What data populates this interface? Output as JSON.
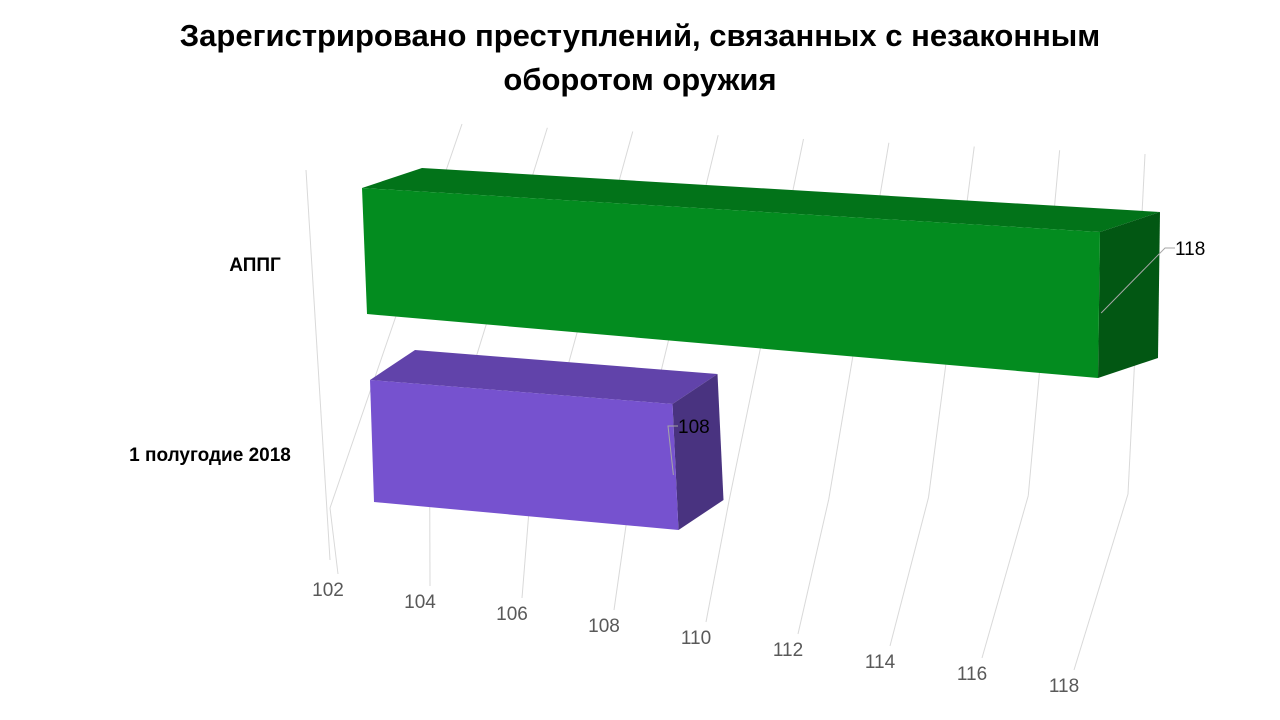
{
  "chart_data": {
    "type": "bar",
    "orientation": "horizontal",
    "style": "3d",
    "title_lines": [
      "Зарегистрировано преступлений, связанных с незаконным",
      "оборотом оружия"
    ],
    "categories": [
      "АППГ",
      "1 полугодие 2018"
    ],
    "values": [
      118,
      108
    ],
    "colors": [
      "#038C1F",
      "#7652CF"
    ],
    "data_labels": [
      "118",
      "108"
    ],
    "xlim": [
      102,
      118
    ],
    "x_ticks": [
      "102",
      "104",
      "106",
      "108",
      "110",
      "112",
      "114",
      "116",
      "118"
    ],
    "grid": true,
    "legend": "none"
  }
}
